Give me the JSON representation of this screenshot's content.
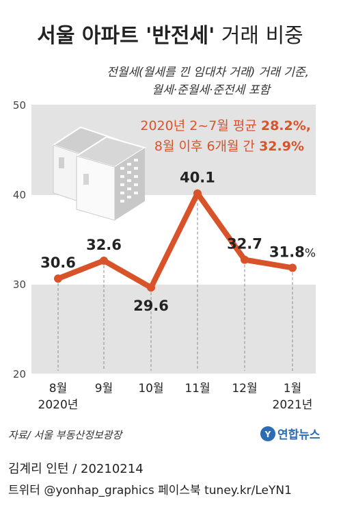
{
  "chart_data": {
    "type": "line",
    "title_main": "서울 아파트 '반전세'",
    "title_rest": "거래 비중",
    "subtitle_line1": "전월세(월세를 낀 임대차 거래) 거래 기준,",
    "subtitle_line2": "월세·준월세·준전세 포함",
    "annotation_line1_text": "2020년 2~7월 평균 ",
    "annotation_line1_value": "28.2%,",
    "annotation_line2_text": "8월 이후 6개월 간 ",
    "annotation_line2_value": "32.9%",
    "categories": [
      "8월",
      "9월",
      "10월",
      "11월",
      "12월",
      "1월"
    ],
    "year_labels": [
      "2020년",
      "",
      "",
      "",
      "",
      "2021년"
    ],
    "values": [
      30.6,
      32.6,
      29.6,
      40.1,
      32.7,
      31.8
    ],
    "data_labels": [
      "30.6",
      "32.6",
      "29.6",
      "40.1",
      "32.7",
      "31.8"
    ],
    "unit_label": "%",
    "ylim": [
      20,
      50
    ],
    "yticks": [
      "20",
      "30",
      "40",
      "50"
    ],
    "colors": {
      "line": "#d9532a",
      "annotation": "#d9532a",
      "band": "#e3e3e3"
    }
  },
  "footer": {
    "source": "자료/ 서울 부동산정보광장",
    "logo_text": "연합뉴스",
    "credit": "김계리 인턴 / 20210214",
    "social": "트위터 @yonhap_graphics  페이스북 tuney.kr/LeYN1"
  }
}
